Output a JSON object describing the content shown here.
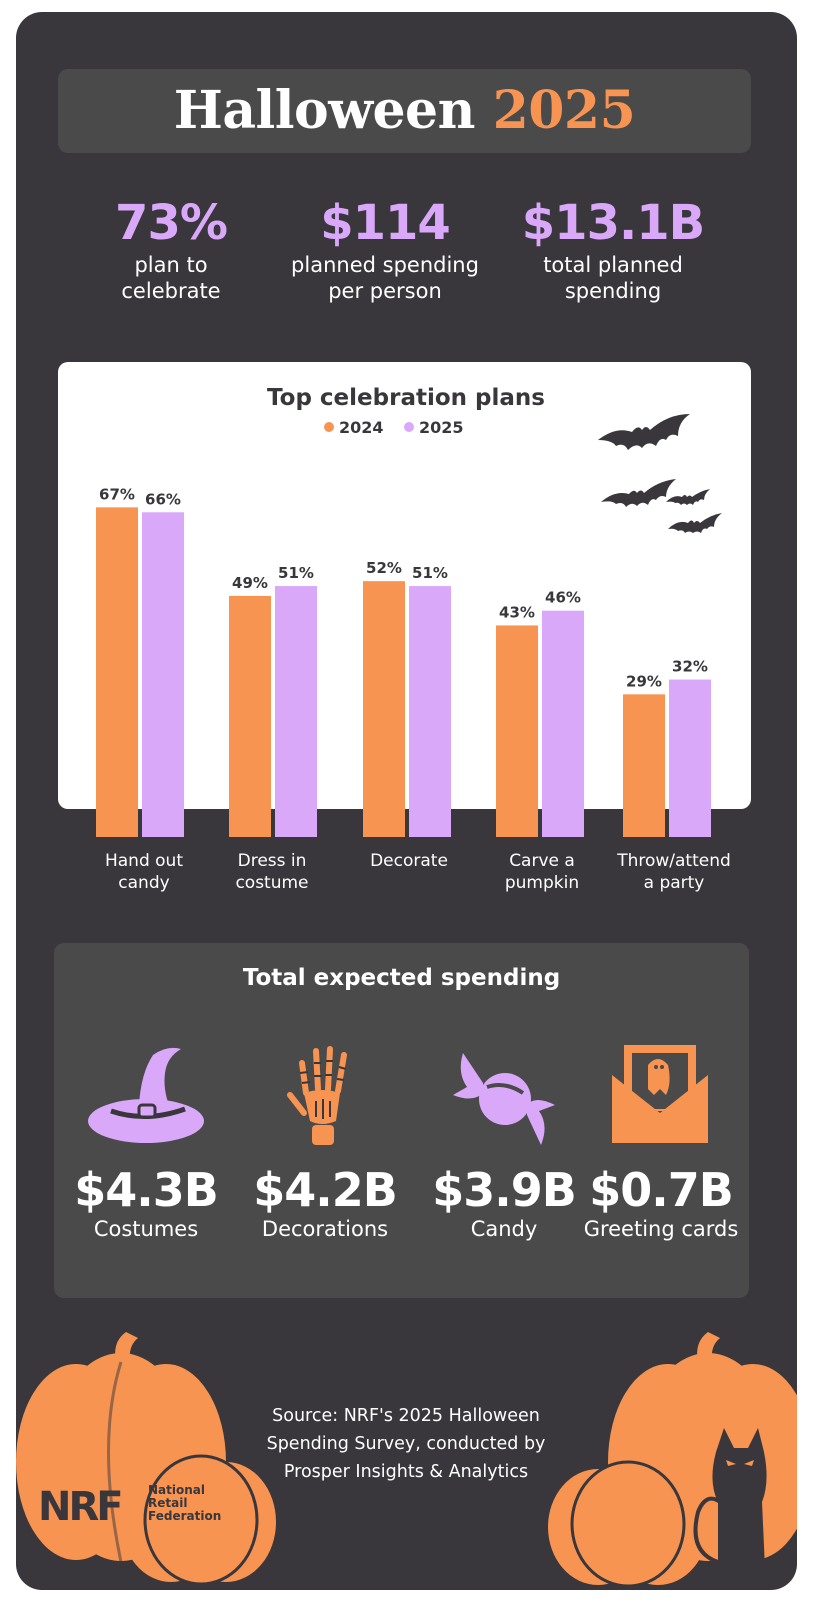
{
  "title": {
    "main": "Halloween",
    "year": "2025"
  },
  "stats": [
    {
      "value": "73%",
      "label_line1": "plan to",
      "label_line2": "celebrate"
    },
    {
      "value": "$114",
      "label_line1": "planned spending",
      "label_line2": "per person"
    },
    {
      "value": "$13.1B",
      "label_line1": "total planned",
      "label_line2": "spending"
    }
  ],
  "chart_data": {
    "type": "bar",
    "title": "Top celebration plans",
    "categories": [
      [
        "Hand out",
        "candy"
      ],
      [
        "Dress in",
        "costume"
      ],
      [
        "Decorate"
      ],
      [
        "Carve a",
        "pumpkin"
      ],
      [
        "Throw/attend",
        "a party"
      ]
    ],
    "series": [
      {
        "name": "2024",
        "values": [
          67,
          49,
          52,
          43,
          29
        ],
        "labels": [
          "67%",
          "49%",
          "52%",
          "43%",
          "29%"
        ],
        "color": "#f79451"
      },
      {
        "name": "2025",
        "values": [
          66,
          51,
          51,
          46,
          32
        ],
        "labels": [
          "66%",
          "51%",
          "51%",
          "46%",
          "32%"
        ],
        "color": "#d9a8f9"
      }
    ],
    "ylim": [
      0,
      100
    ],
    "grid": false,
    "legend": "top-center"
  },
  "spending": {
    "title": "Total expected spending",
    "items": [
      {
        "amount": "$4.3B",
        "label": "Costumes",
        "icon": "witch-hat-icon"
      },
      {
        "amount": "$4.2B",
        "label": "Decorations",
        "icon": "skeleton-hand-icon"
      },
      {
        "amount": "$3.9B",
        "label": "Candy",
        "icon": "candy-icon"
      },
      {
        "amount": "$0.7B",
        "label": "Greeting cards",
        "icon": "greeting-card-icon"
      }
    ]
  },
  "source": {
    "line1": "Source: NRF's 2025 Halloween",
    "line2": "Spending Survey, conducted by",
    "line3": "Prosper Insights & Analytics"
  },
  "logo": {
    "mark": "NRF",
    "line1": "National",
    "line2": "Retail",
    "line3": "Federation"
  },
  "colors": {
    "background": "#3a373c",
    "panel": "#4a4a4a",
    "orange": "#f79451",
    "purple": "#d9a8f9"
  }
}
